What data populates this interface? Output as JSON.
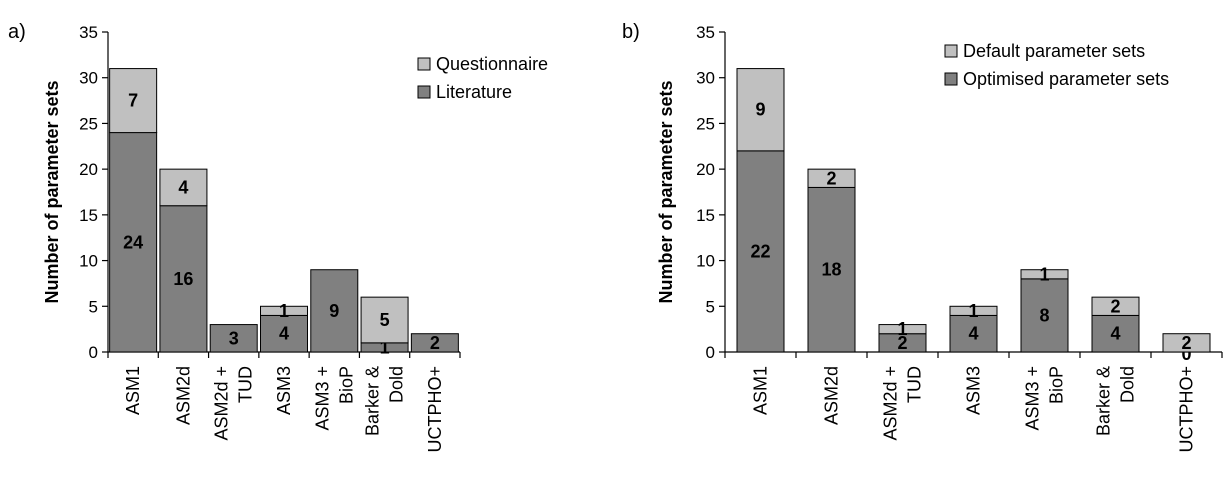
{
  "chart_data": [
    {
      "type": "bar",
      "stacked": true,
      "panel_label": "a)",
      "ylabel": "Number of parameter sets",
      "ylim": [
        0,
        35
      ],
      "yticks": [
        0,
        5,
        10,
        15,
        20,
        25,
        30,
        35
      ],
      "categories": [
        [
          "ASM1"
        ],
        [
          "ASM2d"
        ],
        [
          "ASM2d +",
          "TUD"
        ],
        [
          "ASM3"
        ],
        [
          "ASM3 +",
          "BioP"
        ],
        [
          "Barker &",
          "Dold"
        ],
        [
          "UCTPHO+"
        ]
      ],
      "series": [
        {
          "name": "Literature",
          "color": "#808080",
          "values": [
            24,
            16,
            3,
            4,
            9,
            1,
            2
          ],
          "labels": [
            "24",
            "16",
            "3",
            "4",
            "9",
            "1",
            "2"
          ]
        },
        {
          "name": "Questionnaire",
          "color": "#c0c0c0",
          "values": [
            7,
            4,
            0,
            1,
            0,
            5,
            0
          ],
          "labels": [
            "7",
            "4",
            "",
            "1",
            "",
            "5",
            ""
          ]
        }
      ],
      "legend": {
        "position": "top-right",
        "order": [
          "Questionnaire",
          "Literature"
        ]
      }
    },
    {
      "type": "bar",
      "stacked": true,
      "panel_label": "b)",
      "ylabel": "Number of parameter sets",
      "ylim": [
        0,
        35
      ],
      "yticks": [
        0,
        5,
        10,
        15,
        20,
        25,
        30,
        35
      ],
      "categories": [
        [
          "ASM1"
        ],
        [
          "ASM2d"
        ],
        [
          "ASM2d +",
          "TUD"
        ],
        [
          "ASM3"
        ],
        [
          "ASM3 +",
          "BioP"
        ],
        [
          "Barker &",
          "Dold"
        ],
        [
          "UCTPHO+"
        ]
      ],
      "series": [
        {
          "name": "Optimised parameter sets",
          "color": "#808080",
          "values": [
            22,
            18,
            2,
            4,
            8,
            4,
            0
          ],
          "labels": [
            "22",
            "18",
            "2",
            "4",
            "8",
            "4",
            "0"
          ]
        },
        {
          "name": "Default parameter sets",
          "color": "#c0c0c0",
          "values": [
            9,
            2,
            1,
            1,
            1,
            2,
            2
          ],
          "labels": [
            "9",
            "2",
            "1",
            "1",
            "1",
            "2",
            "2"
          ]
        }
      ],
      "legend": {
        "position": "top-right",
        "order": [
          "Default parameter sets",
          "Optimised parameter sets"
        ]
      }
    }
  ]
}
